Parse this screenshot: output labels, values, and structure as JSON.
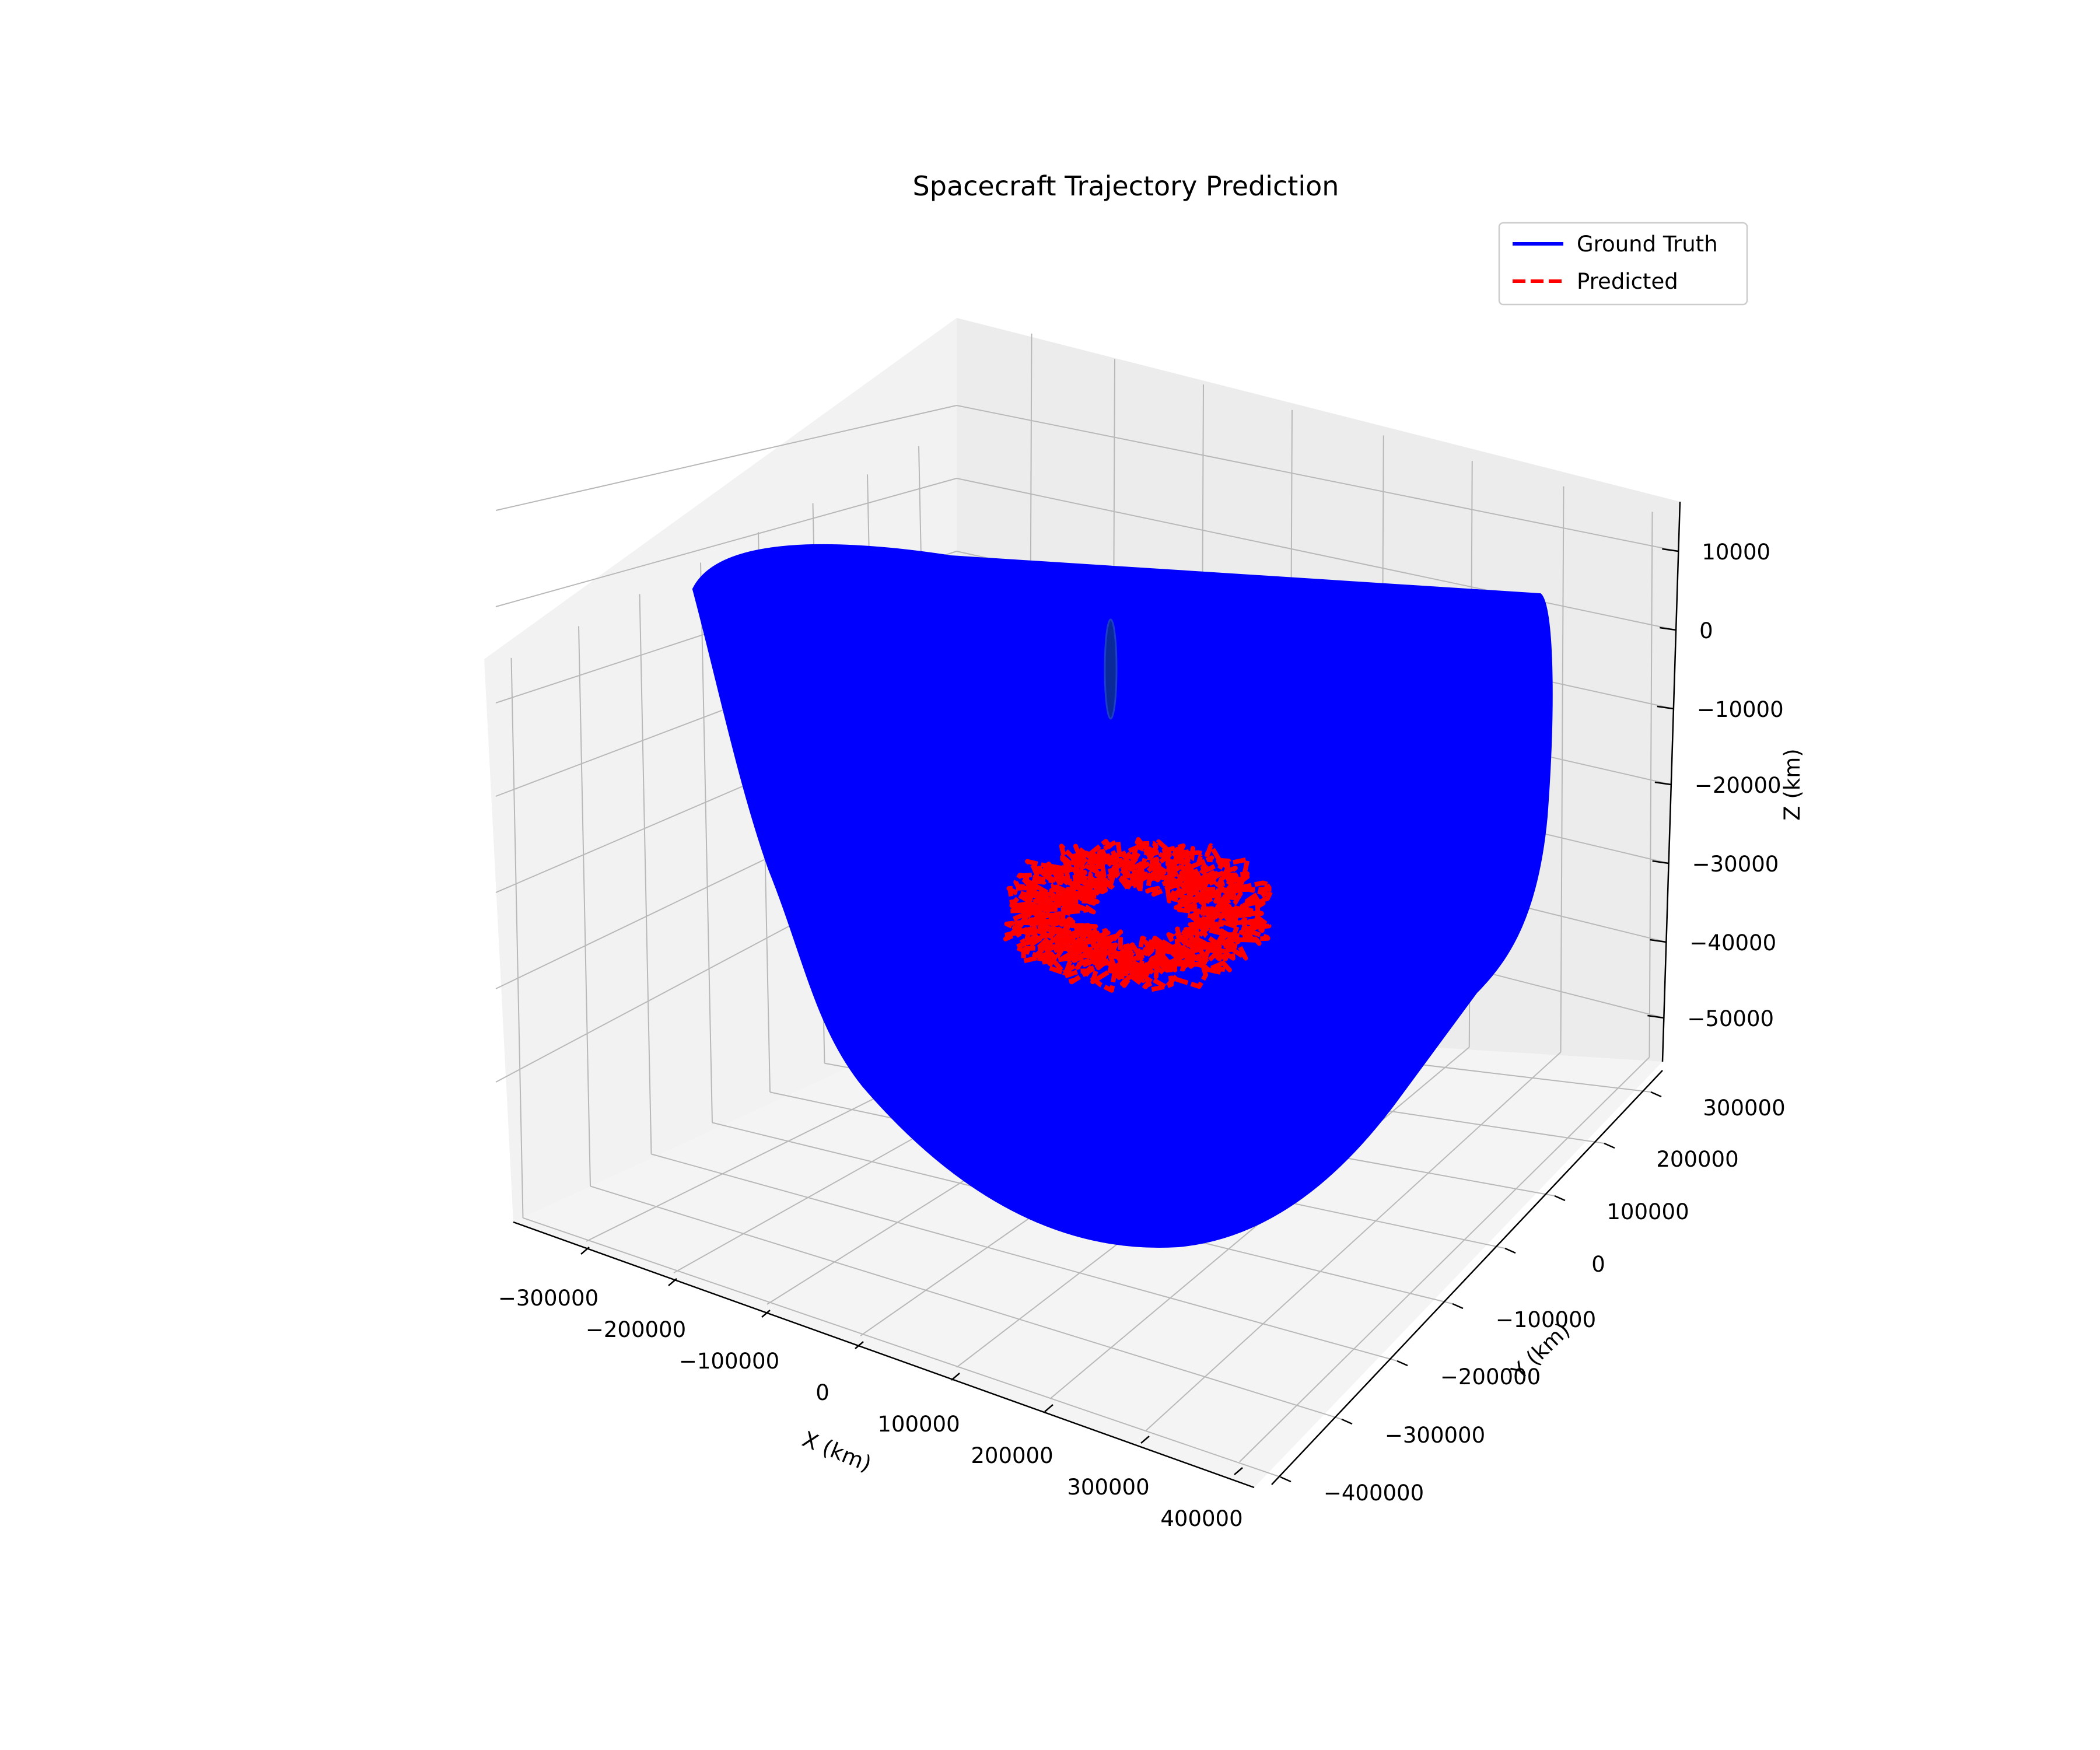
{
  "chart_data": {
    "type": "line",
    "dimensions": "3d",
    "title": "Spacecraft Trajectory Prediction",
    "xlabel": "X (km)",
    "ylabel": "Y (km)",
    "zlabel": "Z (km)",
    "xticks": [
      "−300000",
      "−200000",
      "−100000",
      "0",
      "100000",
      "200000",
      "300000",
      "400000"
    ],
    "yticks": [
      "−400000",
      "−300000",
      "−200000",
      "−100000",
      "0",
      "100000",
      "200000",
      "300000"
    ],
    "zticks": [
      "−50000",
      "−40000",
      "−30000",
      "−20000",
      "−10000",
      "0",
      "10000"
    ],
    "xlim": [
      -340000,
      420000
    ],
    "ylim": [
      -420000,
      340000
    ],
    "zlim": [
      -57000,
      13000
    ],
    "grid": true,
    "legend_position": "top-right",
    "series": [
      {
        "name": "Ground Truth",
        "color": "#0000ff",
        "style": "solid"
      },
      {
        "name": "Predicted",
        "color": "#ff0000",
        "style": "dashed"
      }
    ]
  }
}
